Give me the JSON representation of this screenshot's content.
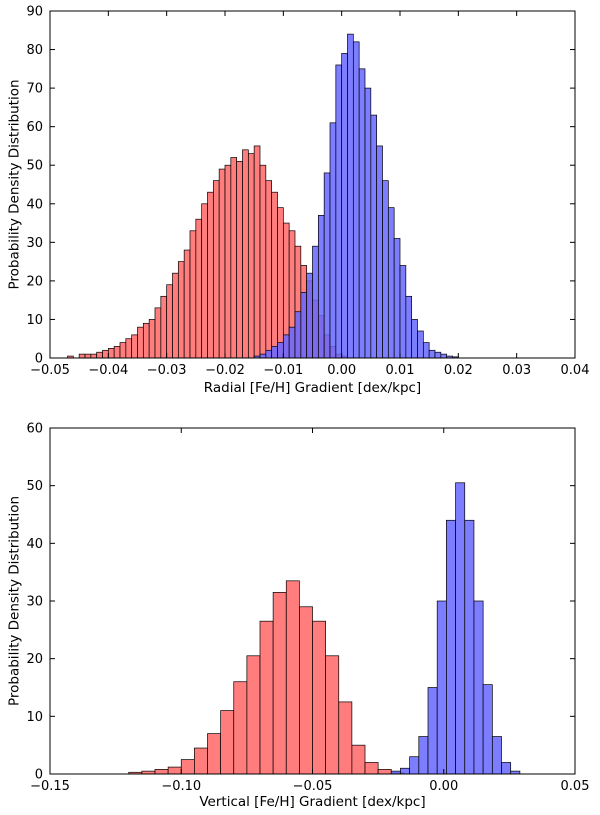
{
  "chart_data": [
    {
      "type": "bar",
      "subtype": "histogram",
      "xlabel": "Radial [Fe/H] Gradient [dex/kpc]",
      "ylabel": "Probability Density Distribution",
      "xlim": [
        -0.05,
        0.04
      ],
      "ylim": [
        0,
        90
      ],
      "xticks": [
        -0.05,
        -0.04,
        -0.03,
        -0.02,
        -0.01,
        0.0,
        0.01,
        0.02,
        0.03,
        0.04
      ],
      "xtick_labels": [
        "−0.05",
        "−0.04",
        "−0.03",
        "−0.02",
        "−0.01",
        "0.00",
        "0.01",
        "0.02",
        "0.03",
        "0.04"
      ],
      "yticks": [
        0,
        10,
        20,
        30,
        40,
        50,
        60,
        70,
        80,
        90
      ],
      "ytick_labels": [
        "0",
        "10",
        "20",
        "30",
        "40",
        "50",
        "60",
        "70",
        "80",
        "90"
      ],
      "grid": false,
      "series": [
        {
          "color": "#ff6666",
          "opacity": 0.85,
          "bin_start": -0.047,
          "bin_width": 0.001,
          "values": [
            0.5,
            0,
            1,
            1,
            1,
            1.5,
            2,
            2.5,
            3,
            4,
            5,
            6,
            8,
            9,
            10,
            13,
            16,
            19,
            22,
            25,
            28,
            33,
            36,
            40,
            43,
            46,
            49,
            50,
            52,
            51,
            54,
            53,
            55,
            50,
            46,
            43,
            39,
            35,
            33,
            29,
            24,
            20,
            15,
            11,
            6,
            3,
            1,
            0.5
          ]
        },
        {
          "color": "#6666ff",
          "opacity": 0.85,
          "bin_start": -0.015,
          "bin_width": 0.001,
          "values": [
            0.5,
            1,
            2,
            3,
            4,
            6,
            8,
            12,
            17,
            22,
            29,
            37,
            48,
            61,
            76,
            79,
            84,
            82,
            75,
            70,
            63,
            55,
            46,
            39,
            31,
            24,
            16,
            10,
            7,
            4,
            2,
            1.5,
            1,
            0.5,
            0.3
          ]
        }
      ]
    },
    {
      "type": "bar",
      "subtype": "histogram",
      "xlabel": "Vertical [Fe/H] Gradient [dex/kpc]",
      "ylabel": "Probability Density Distribution",
      "xlim": [
        -0.15,
        0.05
      ],
      "ylim": [
        0,
        60
      ],
      "xticks": [
        -0.15,
        -0.1,
        -0.05,
        0.0,
        0.05
      ],
      "xtick_labels": [
        "−0.15",
        "−0.10",
        "−0.05",
        "0.00",
        "0.05"
      ],
      "yticks": [
        0,
        10,
        20,
        30,
        40,
        50,
        60
      ],
      "ytick_labels": [
        "0",
        "10",
        "20",
        "30",
        "40",
        "50",
        "60"
      ],
      "grid": false,
      "series": [
        {
          "color": "#ff6666",
          "opacity": 0.85,
          "bin_start": -0.12,
          "bin_width": 0.005,
          "values": [
            0.3,
            0.5,
            0.8,
            1.2,
            2.5,
            4.5,
            7,
            11,
            16,
            20.5,
            26.5,
            31.5,
            33.5,
            29,
            26.5,
            20.5,
            12.5,
            5,
            2,
            0.8,
            0.2
          ]
        },
        {
          "color": "#6666ff",
          "opacity": 0.85,
          "bin_start": -0.02,
          "bin_width": 0.0035,
          "values": [
            0.5,
            1,
            3,
            6.5,
            15,
            30,
            44,
            50.5,
            44,
            30,
            15.5,
            6.5,
            2,
            0.5
          ]
        }
      ]
    }
  ]
}
